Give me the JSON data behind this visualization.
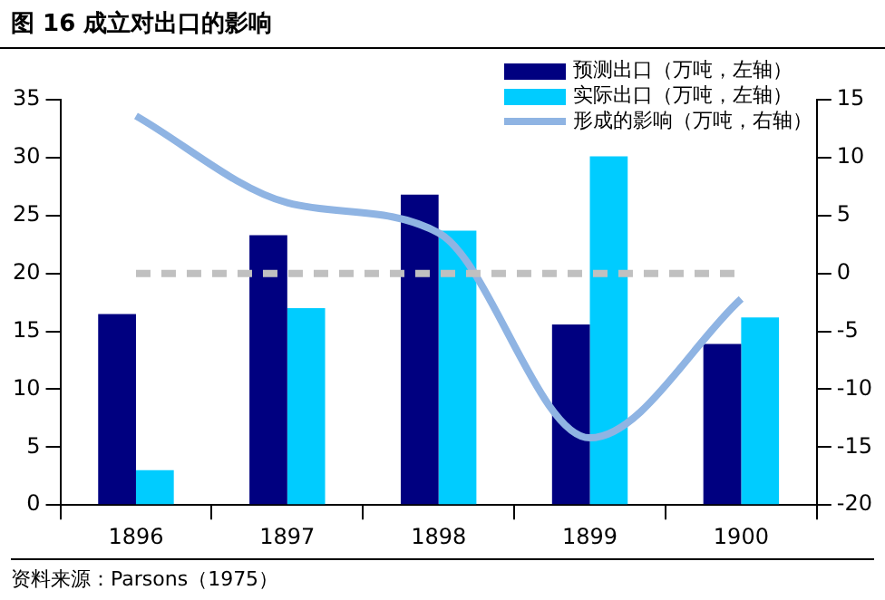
{
  "chart_data": {
    "type": "bar",
    "title": "图 16 成立对出口的影响",
    "categories": [
      "1896",
      "1897",
      "1898",
      "1899",
      "1900"
    ],
    "series": [
      {
        "name": "预测出口（万吨，左轴）",
        "color": "#000080",
        "values": [
          16.5,
          23.3,
          26.8,
          15.6,
          13.9
        ]
      },
      {
        "name": "实际出口（万吨，左轴）",
        "color": "#00ccff",
        "values": [
          3,
          17,
          23.7,
          30.1,
          16.2
        ]
      },
      {
        "name": "形成的影响（万吨，右轴）",
        "type": "line",
        "axis": "y2",
        "color": "#8fb4e3",
        "values": [
          13.6,
          6.1,
          3.5,
          -14.2,
          -2.2
        ]
      }
    ],
    "ylim": [
      0,
      35
    ],
    "yticks": [
      0,
      5,
      10,
      15,
      20,
      25,
      30,
      35
    ],
    "y2lim": [
      -20,
      15
    ],
    "y2ticks": [
      -20,
      -15,
      -10,
      -5,
      0,
      5,
      10,
      15
    ],
    "ref_lines": [
      {
        "axis": "y2",
        "value": 0,
        "color": "#c0c0c0",
        "line_style": "dashed"
      }
    ],
    "grid": false,
    "legend": "top right",
    "marker": "none",
    "annotations": [
      "资料来源：Parsons（1975）"
    ]
  }
}
